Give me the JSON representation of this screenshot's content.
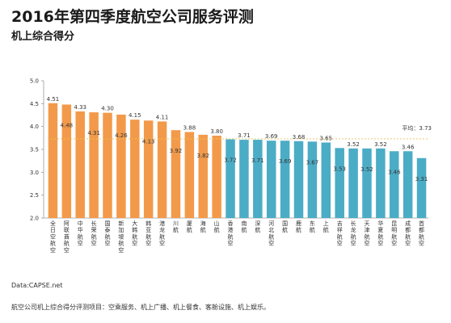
{
  "title": "2016年第四季度航空公司服务评测",
  "subtitle": "机上综合得分",
  "source": "Data:CAPSE.net",
  "footnote": "航空公司机上综合得分评测项目：空乘服务、机上广播、机上餐食、客舱设施、机上娱乐。",
  "colors": {
    "orange": "#F29A4A",
    "blue": "#4BACC6",
    "avgline": "#E6C35C"
  },
  "chart_data": {
    "type": "bar",
    "title": "2016年第四季度航空公司服务评测",
    "subtitle": "机上综合得分",
    "ylim": [
      2.0,
      5.0
    ],
    "yticks": [
      "2.0",
      "2.5",
      "3.0",
      "3.5",
      "4.0",
      "4.5",
      "5.0"
    ],
    "grid": false,
    "average_label": "平均：3.73",
    "average_value": 3.73,
    "categories": [
      "全日空航空",
      "阿联酋航空",
      "中华航空",
      "长荣航空",
      "国泰航空",
      "新加坡航空",
      "大韩航空",
      "韩亚航空",
      "港龙航空",
      "川航",
      "厦航",
      "海航",
      "山航",
      "香港航空",
      "南航",
      "深航",
      "河北航空",
      "国航",
      "鹿航",
      "东航",
      "上航",
      "吉祥航空",
      "长龙航空",
      "天津航空",
      "华夏航空",
      "昆明航空",
      "成都航空",
      "首都航空"
    ],
    "values": [
      4.51,
      4.48,
      4.33,
      4.31,
      4.3,
      4.26,
      4.15,
      4.13,
      4.11,
      3.92,
      3.88,
      3.82,
      3.8,
      3.72,
      3.71,
      3.71,
      3.69,
      3.69,
      3.68,
      3.67,
      3.65,
      3.53,
      3.52,
      3.52,
      3.52,
      3.46,
      3.46,
      3.31
    ],
    "labels": [
      "4.51",
      "4.48",
      "4.33",
      "4.31",
      "4.30",
      "4.26",
      "4.15",
      "4.13",
      "4.11",
      "3.92",
      "3.88",
      "3.82",
      "3.80",
      "3.72",
      "3.71",
      "3.71",
      "3.69",
      "3.69",
      "3.68",
      "3.67",
      "3.65",
      "3.53",
      "3.52",
      "3.52",
      "3.52",
      "3.46",
      "3.46",
      "3.31"
    ],
    "label_pos": [
      "top",
      "inside",
      "top",
      "inside",
      "top",
      "inside",
      "top",
      "inside",
      "top",
      "inside",
      "top",
      "inside",
      "top",
      "inside",
      "top",
      "inside",
      "top",
      "inside",
      "top",
      "inside",
      "top",
      "inside",
      "top",
      "inside",
      "top",
      "inside",
      "top",
      "inside"
    ],
    "groups": [
      "orange",
      "orange",
      "orange",
      "orange",
      "orange",
      "orange",
      "orange",
      "orange",
      "orange",
      "orange",
      "orange",
      "orange",
      "orange",
      "blue",
      "blue",
      "blue",
      "blue",
      "blue",
      "blue",
      "blue",
      "blue",
      "blue",
      "blue",
      "blue",
      "blue",
      "blue",
      "blue",
      "blue"
    ]
  }
}
